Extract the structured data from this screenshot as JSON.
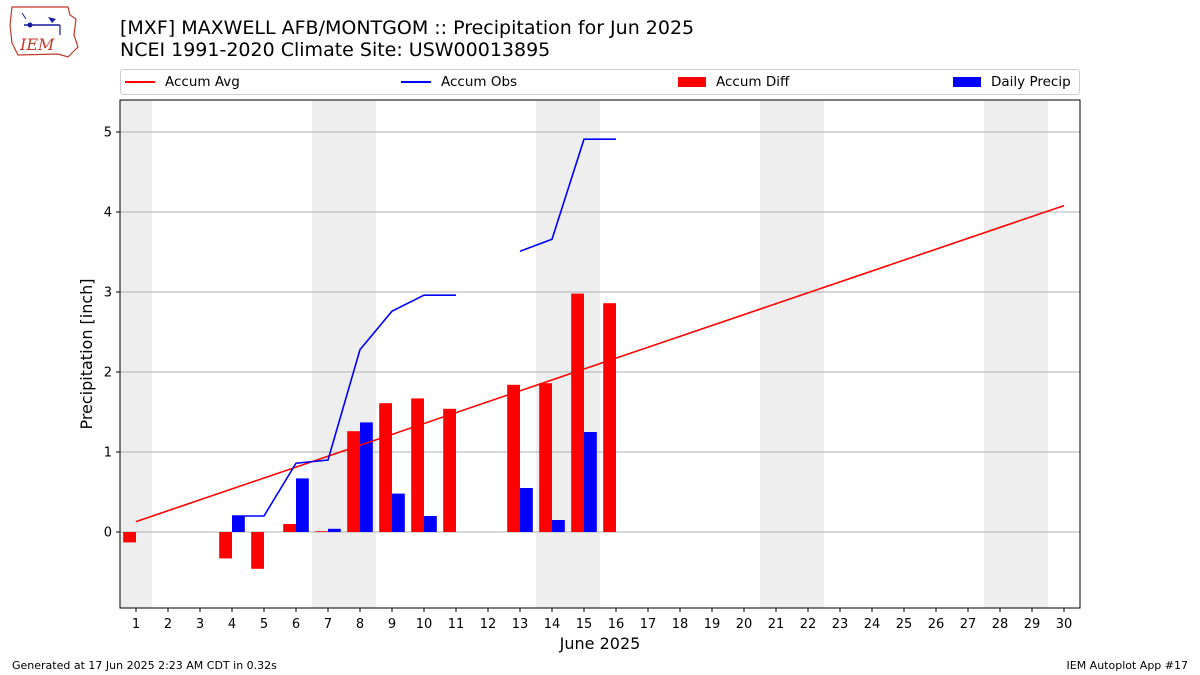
{
  "header": {
    "logo_text": "IEM",
    "title": "[MXF] MAXWELL AFB/MONTGOM :: Precipitation for Jun 2025",
    "subtitle": "NCEI 1991-2020 Climate Site: USW00013895"
  },
  "legend": {
    "items": [
      {
        "label": "Accum Avg",
        "kind": "line",
        "color": "#ff0000"
      },
      {
        "label": "Accum Obs",
        "kind": "line",
        "color": "#0000ff"
      },
      {
        "label": "Accum Diff",
        "kind": "box",
        "color": "#ff0000"
      },
      {
        "label": "Daily Precip",
        "kind": "box",
        "color": "#0000ff"
      }
    ]
  },
  "footer": {
    "left": "Generated at 17 Jun 2025 2:23 AM CDT in 0.32s",
    "right": "IEM Autoplot App #17"
  },
  "chart_data": {
    "type": "bar",
    "xlabel": "June 2025",
    "ylabel": "Precipitation [inch]",
    "xlim": [
      0.5,
      30.5
    ],
    "ylim": [
      -0.95,
      5.4
    ],
    "x_ticks": [
      1,
      2,
      3,
      4,
      5,
      6,
      7,
      8,
      9,
      10,
      11,
      12,
      13,
      14,
      15,
      16,
      17,
      18,
      19,
      20,
      21,
      22,
      23,
      24,
      25,
      26,
      27,
      28,
      29,
      30
    ],
    "y_ticks": [
      0,
      1,
      2,
      3,
      4,
      5
    ],
    "grid": "horizontal",
    "legend_position": "top",
    "weekend_shading": [
      [
        0.5,
        1.5
      ],
      [
        6.5,
        8.5
      ],
      [
        13.5,
        15.5
      ],
      [
        20.5,
        22.5
      ],
      [
        27.5,
        29.5
      ]
    ],
    "accum_avg": {
      "days": [
        1,
        30
      ],
      "values": [
        0.13,
        4.08
      ],
      "color": "#ff0000"
    },
    "accum_obs": {
      "segments": [
        {
          "days": [
            4,
            5,
            6,
            7,
            8,
            9,
            10,
            11
          ],
          "values": [
            0.2,
            0.2,
            0.86,
            0.9,
            2.28,
            2.76,
            2.96,
            2.96
          ]
        },
        {
          "days": [
            13,
            14,
            15,
            16
          ],
          "values": [
            3.51,
            3.66,
            4.91,
            4.91
          ]
        }
      ],
      "color": "#0000ff"
    },
    "accum_diff": {
      "days": [
        1,
        4,
        5,
        6,
        7,
        8,
        9,
        10,
        11,
        13,
        14,
        15,
        16
      ],
      "values": [
        -0.13,
        -0.33,
        -0.46,
        0.1,
        0.01,
        1.26,
        1.61,
        1.67,
        1.54,
        1.84,
        1.86,
        2.98,
        2.86
      ],
      "color": "#ff0000"
    },
    "daily_precip": {
      "days": [
        4,
        6,
        7,
        8,
        9,
        10,
        13,
        14,
        15
      ],
      "values": [
        0.2,
        0.67,
        0.04,
        1.37,
        0.48,
        0.2,
        0.55,
        0.15,
        1.25
      ],
      "color": "#0000ff"
    }
  }
}
